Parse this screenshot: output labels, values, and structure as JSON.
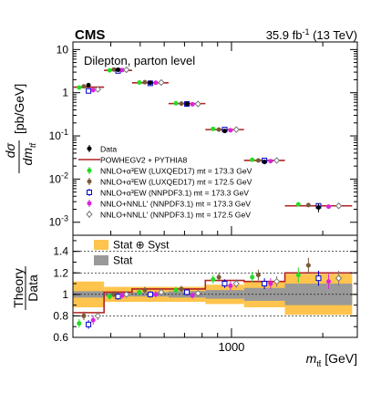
{
  "header": {
    "experiment": "CMS",
    "lumi_prefix": "35.9 fb",
    "lumi_exp": "-1",
    "lumi_suffix": " (13 TeV)"
  },
  "chart_data": [
    {
      "type": "scatter",
      "panel": "upper",
      "annotation": "Dilepton, parton level",
      "ylabel": {
        "num": "dσ",
        "den_main": "dm",
        "den_sub": "tt̄",
        "unit": "[pb/GeV]"
      },
      "yscale": "log",
      "ylim": [
        0.0005,
        15
      ],
      "xlim": [
        300,
        2600
      ],
      "yticks": [
        {
          "v": 0.001,
          "base": "10",
          "exp": "-3"
        },
        {
          "v": 0.01,
          "base": "10",
          "exp": "-2"
        },
        {
          "v": 0.1,
          "base": "10",
          "exp": "-1"
        },
        {
          "v": 1,
          "base": "1",
          "exp": ""
        },
        {
          "v": 10,
          "base": "10",
          "exp": ""
        }
      ],
      "bins": [
        300,
        380,
        470,
        620,
        820,
        1100,
        1500,
        2500
      ],
      "data": [
        1.5,
        3.4,
        1.7,
        0.55,
        0.13,
        0.025,
        0.0022
      ],
      "data_err": [
        0.15,
        0.25,
        0.1,
        0.04,
        0.012,
        0.003,
        0.0005
      ],
      "powheg": [
        1.35,
        3.3,
        1.7,
        0.56,
        0.14,
        0.027,
        0.0024
      ],
      "predictions": [
        {
          "name": "luxqed_1733",
          "dx": -0.3,
          "values": [
            1.32,
            3.3,
            1.72,
            0.57,
            0.145,
            0.028,
            0.0026
          ]
        },
        {
          "name": "luxqed_1725",
          "dx": -0.15,
          "values": [
            1.4,
            3.45,
            1.75,
            0.56,
            0.14,
            0.027,
            0.0025
          ]
        },
        {
          "name": "nnpdf_nlo_1733",
          "dx": 0.0,
          "values": [
            1.1,
            3.2,
            1.65,
            0.55,
            0.14,
            0.027,
            0.0024
          ]
        },
        {
          "name": "nnpdf_nnll_1733",
          "dx": 0.15,
          "values": [
            1.15,
            3.35,
            1.7,
            0.54,
            0.135,
            0.026,
            0.0023
          ]
        },
        {
          "name": "nnpdf_nnll_1725",
          "dx": 0.3,
          "values": [
            1.2,
            3.4,
            1.72,
            0.55,
            0.14,
            0.027,
            0.0024
          ]
        }
      ],
      "legend": [
        {
          "key": "data",
          "style": "dot",
          "color": "#000000",
          "label": "Data"
        },
        {
          "key": "powheg",
          "style": "line",
          "color": "#b22222",
          "label": "POWHEGV2 + PYTHIA8"
        },
        {
          "key": "luxqed_1733",
          "style": "filled",
          "color": "#22dd22",
          "label": "NNLO+α³EW (LUXQED17) mt = 173.3 GeV"
        },
        {
          "key": "luxqed_1725",
          "style": "filled",
          "color": "#7a5a3a",
          "label": "NNLO+α³EW (LUXQED17) mt = 172.5 GeV"
        },
        {
          "key": "nnpdf_nlo_1733",
          "style": "open-square",
          "color": "#0000cc",
          "label": "NNLO+α³EW (NNPDF3.1) mt = 173.3 GeV"
        },
        {
          "key": "nnpdf_nnll_1733",
          "style": "filled",
          "color": "#dd22dd",
          "label": "NNLO+NNLL' (NNPDF3.1) mt = 173.3 GeV"
        },
        {
          "key": "nnpdf_nnll_1725",
          "style": "open-diamond",
          "color": "#777777",
          "label": "NNLO+NNLL' (NNPDF3.1) mt = 172.5 GeV"
        }
      ]
    },
    {
      "type": "scatter",
      "panel": "ratio",
      "ylabel": {
        "num": "Theory",
        "den": "Data"
      },
      "xlabel": {
        "main": "m",
        "sub": "tt̄",
        "unit": " [GeV]"
      },
      "xscale": "log",
      "xlim": [
        300,
        2600
      ],
      "ylim": [
        0.6,
        1.55
      ],
      "yticks": [
        "0.6",
        "0.8",
        "1",
        "1.2",
        "1.4"
      ],
      "xticks": [
        {
          "v": 1000,
          "label": "1000"
        }
      ],
      "band_legend": [
        {
          "key": "statsyst",
          "color": "#ffc44d",
          "label": "Stat ⊕ Syst"
        },
        {
          "key": "stat",
          "color": "#999999",
          "label": "Stat"
        }
      ],
      "stat_syst_unc": [
        0.12,
        0.07,
        0.07,
        0.07,
        0.09,
        0.12,
        0.19
      ],
      "stat_unc": [
        0.03,
        0.02,
        0.02,
        0.03,
        0.04,
        0.06,
        0.1
      ],
      "powheg": [
        0.83,
        1.02,
        1.05,
        1.05,
        1.13,
        1.12,
        1.2
      ],
      "ratio_points": [
        {
          "name": "luxqed_1733",
          "values": [
            0.73,
            0.98,
            1.02,
            1.04,
            1.14,
            1.16,
            1.18
          ],
          "errs": [
            0.04,
            0.03,
            0.03,
            0.03,
            0.04,
            0.05,
            0.07
          ]
        },
        {
          "name": "luxqed_1725",
          "values": [
            0.8,
            1.0,
            1.04,
            1.05,
            1.16,
            1.18,
            1.27
          ],
          "errs": [
            0.04,
            0.03,
            0.03,
            0.03,
            0.04,
            0.05,
            0.07
          ]
        },
        {
          "name": "nnpdf_nlo_1733",
          "values": [
            0.72,
            0.98,
            1.0,
            1.02,
            1.1,
            1.1,
            1.15
          ],
          "errs": [
            0.04,
            0.03,
            0.03,
            0.03,
            0.04,
            0.05,
            0.07
          ]
        },
        {
          "name": "nnpdf_nnll_1733",
          "values": [
            0.76,
            0.99,
            1.0,
            0.99,
            1.08,
            1.1,
            1.12
          ],
          "errs": [
            0.04,
            0.03,
            0.03,
            0.03,
            0.04,
            0.05,
            0.07
          ]
        },
        {
          "name": "nnpdf_nnll_1725",
          "values": [
            0.8,
            1.0,
            1.02,
            1.01,
            1.1,
            1.12,
            1.15
          ],
          "errs": [
            0.04,
            0.03,
            0.03,
            0.03,
            0.04,
            0.05,
            0.07
          ]
        }
      ]
    }
  ]
}
